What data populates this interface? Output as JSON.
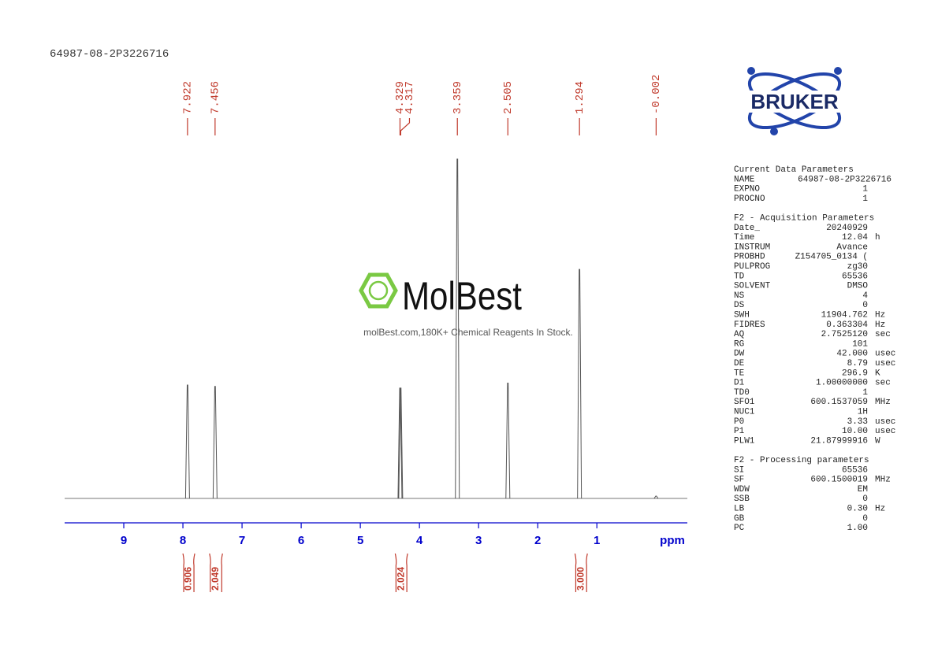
{
  "chart_data": {
    "type": "nmr",
    "title": "64987-08-2P3226716",
    "xlabel": "ppm",
    "xlim": [
      10,
      -0.53
    ],
    "xticks": [
      9,
      8,
      7,
      6,
      5,
      4,
      3,
      2,
      1
    ],
    "ylim": [
      0,
      100
    ],
    "color": "#555555",
    "label_color": "#c0392b",
    "axis_color": "#0000cc",
    "peaks": {
      "x": [
        7.922,
        7.456,
        4.329,
        4.317,
        3.359,
        2.505,
        1.294,
        -0.002
      ],
      "values": [
        33.4,
        33,
        32.5,
        32.5,
        100,
        34,
        67.5,
        0.7
      ]
    },
    "integrals": {
      "ranges": [
        [
          8.0,
          7.8
        ],
        [
          7.55,
          7.33
        ],
        [
          4.41,
          4.2
        ],
        [
          1.37,
          1.16
        ]
      ],
      "values": [
        0.906,
        2.049,
        2.024,
        3
      ],
      "value_labels": [
        "0.906",
        "2.049",
        "2.024",
        "3.000"
      ]
    }
  },
  "logo": {
    "text": "BRUKER"
  },
  "watermark": {
    "name": "MolBest",
    "tagline": "molBest.com,180K+ Chemical Reagents In Stock."
  },
  "parameters": [
    {
      "title": "Current Data Parameters",
      "rows": [
        [
          "NAME",
          "64987-08-2P3226716"
        ],
        [
          "EXPNO",
          "1"
        ],
        [
          "PROCNO",
          "1"
        ]
      ]
    },
    {
      "title": "F2 - Acquisition Parameters",
      "rows": [
        [
          "Date_",
          "20240929"
        ],
        [
          "Time",
          "12.04",
          "h"
        ],
        [
          "INSTRUM",
          "Avance"
        ],
        [
          "PROBHD",
          "Z154705_0134 ("
        ],
        [
          "PULPROG",
          "zg30"
        ],
        [
          "TD",
          "65536"
        ],
        [
          "SOLVENT",
          "DMSO"
        ],
        [
          "NS",
          "4"
        ],
        [
          "DS",
          "0"
        ],
        [
          "SWH",
          "11904.762",
          "Hz"
        ],
        [
          "FIDRES",
          "0.363304",
          "Hz"
        ],
        [
          "AQ",
          "2.7525120",
          "sec"
        ],
        [
          "RG",
          "101"
        ],
        [
          "DW",
          "42.000",
          "usec"
        ],
        [
          "DE",
          "8.79",
          "usec"
        ],
        [
          "TE",
          "296.9",
          "K"
        ],
        [
          "D1",
          "1.00000000",
          "sec"
        ],
        [
          "TD0",
          "1"
        ],
        [
          "SFO1",
          "600.1537059",
          "MHz"
        ],
        [
          "NUC1",
          "1H"
        ],
        [
          "P0",
          "3.33",
          "usec"
        ],
        [
          "P1",
          "10.00",
          "usec"
        ],
        [
          "PLW1",
          "21.87999916",
          "W"
        ]
      ]
    },
    {
      "title": "F2 - Processing parameters",
      "rows": [
        [
          "SI",
          "65536"
        ],
        [
          "SF",
          "600.1500019",
          "MHz"
        ],
        [
          "WDW",
          "EM"
        ],
        [
          "SSB",
          "0"
        ],
        [
          "LB",
          "0.30",
          "Hz"
        ],
        [
          "GB",
          "0"
        ],
        [
          "PC",
          "1.00"
        ]
      ]
    }
  ]
}
